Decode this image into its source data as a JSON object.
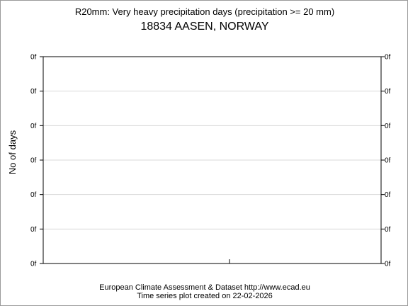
{
  "chart_data": {
    "type": "line",
    "title": "R20mm: Very heavy precipitation days (precipitation >= 20 mm)",
    "subtitle": "18834 AASEN, NORWAY",
    "ylabel": "No of days",
    "xlabel": "",
    "y_tick_labels": [
      "0f",
      "0f",
      "0f",
      "0f",
      "0f",
      "0f",
      "0f"
    ],
    "series": [],
    "grid": true
  },
  "footer": {
    "line1": "European Climate Assessment & Dataset  http://www.ecad.eu",
    "line2": "Time series plot created on 22-02-2026"
  }
}
